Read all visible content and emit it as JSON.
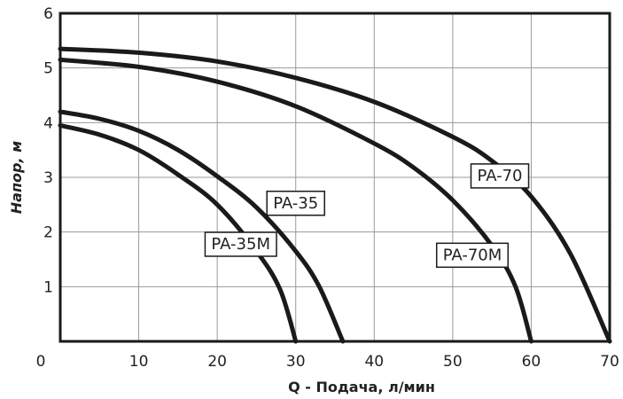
{
  "chart_data": {
    "type": "line",
    "title": "",
    "xlabel": "Q - Подача, л/мин",
    "ylabel": "Напор, м",
    "xlim": [
      0,
      70
    ],
    "ylim": [
      0,
      6
    ],
    "x_ticks": [
      "0",
      "10",
      "20",
      "30",
      "40",
      "50",
      "60",
      "70"
    ],
    "y_ticks": [
      "1",
      "2",
      "3",
      "4",
      "5",
      "6"
    ],
    "grid": true,
    "legend": "inline labels on curves",
    "series": [
      {
        "name": "PA-70",
        "points": [
          [
            0,
            5.35
          ],
          [
            10,
            5.28
          ],
          [
            20,
            5.12
          ],
          [
            30,
            4.82
          ],
          [
            40,
            4.38
          ],
          [
            50,
            3.74
          ],
          [
            55,
            3.3
          ],
          [
            60,
            2.65
          ],
          [
            65,
            1.6
          ],
          [
            70,
            0
          ]
        ]
      },
      {
        "name": "PA-70M",
        "points": [
          [
            0,
            5.15
          ],
          [
            10,
            5.02
          ],
          [
            20,
            4.75
          ],
          [
            30,
            4.3
          ],
          [
            40,
            3.62
          ],
          [
            45,
            3.18
          ],
          [
            50,
            2.58
          ],
          [
            55,
            1.75
          ],
          [
            58,
            1.0
          ],
          [
            60,
            0
          ]
        ]
      },
      {
        "name": "PA-35",
        "points": [
          [
            0,
            4.2
          ],
          [
            5,
            4.07
          ],
          [
            10,
            3.85
          ],
          [
            15,
            3.5
          ],
          [
            20,
            3.02
          ],
          [
            25,
            2.45
          ],
          [
            30,
            1.65
          ],
          [
            33,
            1.0
          ],
          [
            36,
            0
          ]
        ]
      },
      {
        "name": "PA-35M",
        "points": [
          [
            0,
            3.95
          ],
          [
            5,
            3.78
          ],
          [
            10,
            3.5
          ],
          [
            15,
            3.05
          ],
          [
            20,
            2.5
          ],
          [
            25,
            1.65
          ],
          [
            28,
            0.95
          ],
          [
            30,
            0
          ]
        ]
      }
    ],
    "annotations": [
      {
        "text": "PA-70",
        "x": 56,
        "y": 3.05
      },
      {
        "text": "PA-70M",
        "x": 52.5,
        "y": 1.6
      },
      {
        "text": "PA-35",
        "x": 30,
        "y": 2.55
      },
      {
        "text": "PA-35M",
        "x": 23,
        "y": 1.8
      }
    ]
  }
}
